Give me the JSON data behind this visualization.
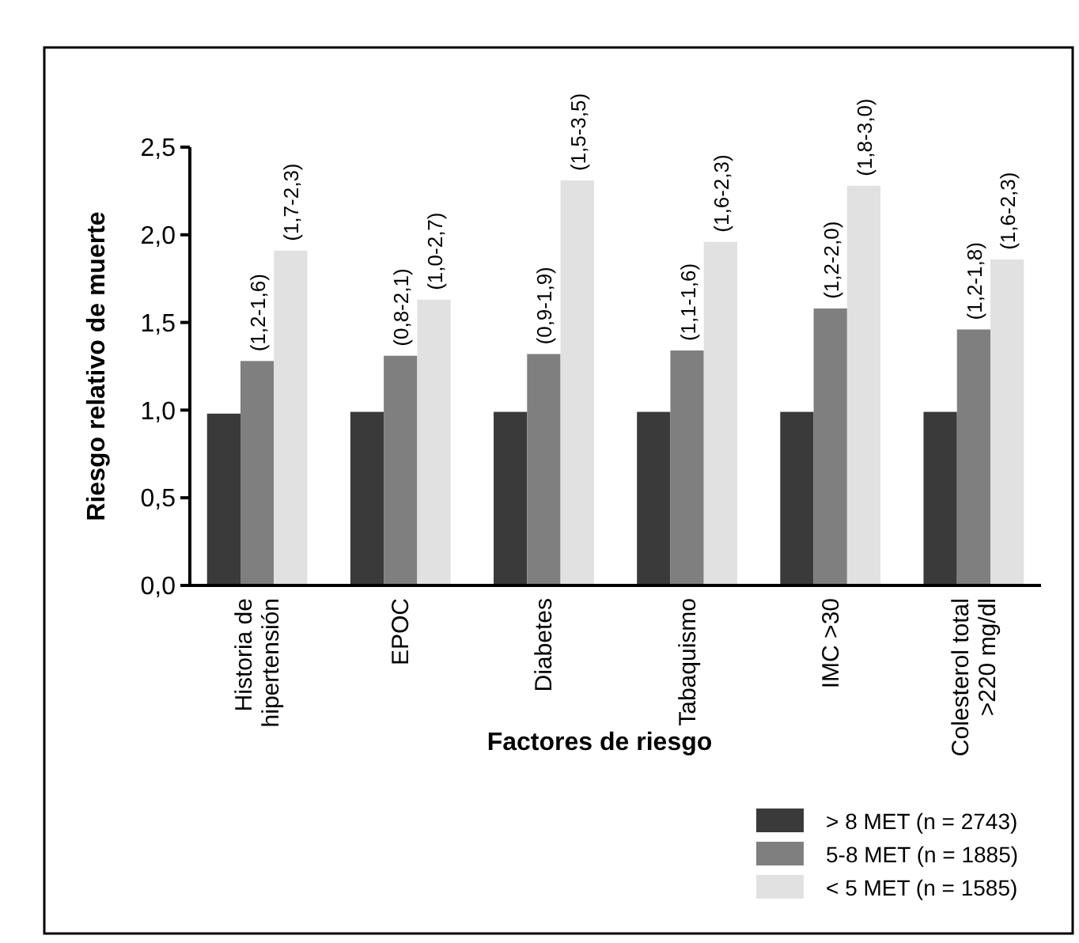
{
  "chart_data": {
    "type": "bar",
    "xlabel": "Factores de riesgo",
    "ylabel": "Riesgo relativo de muerte",
    "categories": [
      "Historia de\nhipertensión",
      "EPOC",
      "Diabetes",
      "Tabaquismo",
      "IMC >30",
      "Colesterol total\n>220 mg/dl"
    ],
    "series": [
      {
        "name": "> 8 MET (n = 2743)",
        "color": "#3a3a3a",
        "values": [
          0.98,
          0.99,
          0.99,
          0.99,
          0.99,
          0.99
        ]
      },
      {
        "name": "5-8 MET (n = 1885)",
        "color": "#7f7f7f",
        "values": [
          1.28,
          1.31,
          1.32,
          1.34,
          1.58,
          1.46
        ],
        "value_labels": [
          "(1,2-1,6)",
          "(0,8-2,1)",
          "(0,9-1,9)",
          "(1,1-1,6)",
          "(1,2-2,0)",
          "(1,2-1,8)"
        ]
      },
      {
        "name": "< 5 MET (n = 1585)",
        "color": "#e1e1e1",
        "values": [
          1.91,
          1.63,
          2.31,
          1.96,
          2.28,
          1.86
        ],
        "value_labels": [
          "(1,7-2,3)",
          "(1,0-2,7)",
          "(1,5-3,5)",
          "(1,6-2,3)",
          "(1,8-3,0)",
          "(1,6-2,3)"
        ]
      }
    ],
    "ylim": [
      0,
      2.5
    ],
    "yticks": [
      {
        "value": 0,
        "label": "0,0"
      },
      {
        "value": 0.5,
        "label": "0,5"
      },
      {
        "value": 1,
        "label": "1,0"
      },
      {
        "value": 1.5,
        "label": "1,5"
      },
      {
        "value": 2,
        "label": "2,0"
      },
      {
        "value": 2.5,
        "label": "2,5"
      }
    ],
    "grid": false,
    "legend": "bottom right"
  }
}
